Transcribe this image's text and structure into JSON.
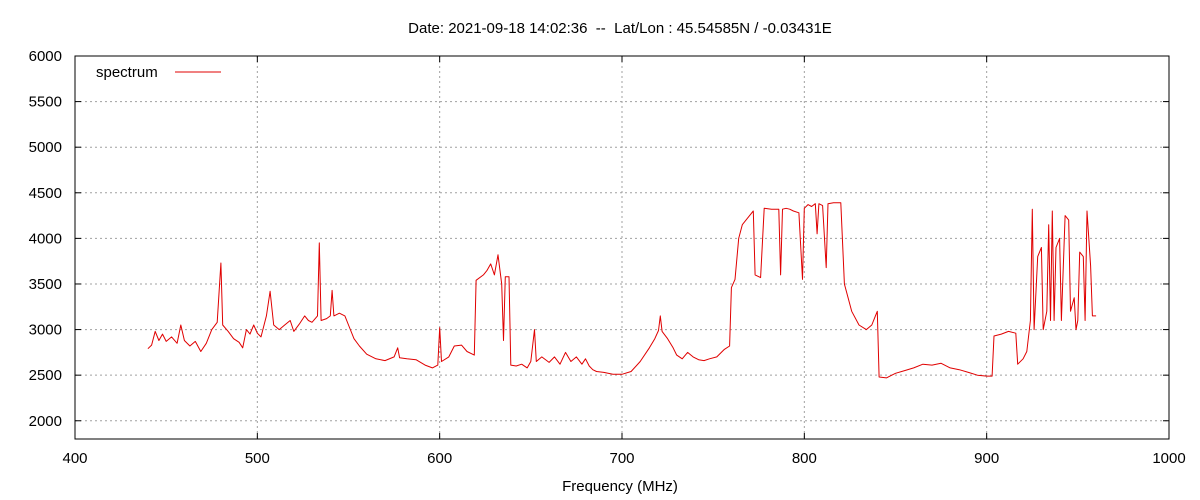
{
  "chart_data": {
    "type": "line",
    "title": "Date: 2021-09-18 14:02:36  --  Lat/Lon : 45.54585N / -0.03431E",
    "xlabel": "Frequency (MHz)",
    "ylabel": "",
    "xlim": [
      400,
      1000
    ],
    "ylim": [
      1800,
      6000
    ],
    "xticks": [
      400,
      500,
      600,
      700,
      800,
      900,
      1000
    ],
    "yticks": [
      2000,
      2500,
      3000,
      3500,
      4000,
      4500,
      5000,
      5500,
      6000
    ],
    "grid": true,
    "legend_position": "top-left",
    "series": [
      {
        "name": "spectrum",
        "color": "#e00000",
        "points": [
          [
            440,
            2790
          ],
          [
            442,
            2830
          ],
          [
            444,
            2980
          ],
          [
            446,
            2880
          ],
          [
            448,
            2950
          ],
          [
            450,
            2870
          ],
          [
            453,
            2920
          ],
          [
            456,
            2850
          ],
          [
            458,
            3050
          ],
          [
            460,
            2880
          ],
          [
            463,
            2820
          ],
          [
            466,
            2870
          ],
          [
            469,
            2760
          ],
          [
            472,
            2850
          ],
          [
            475,
            3000
          ],
          [
            478,
            3080
          ],
          [
            480,
            3730
          ],
          [
            481,
            3050
          ],
          [
            484,
            2980
          ],
          [
            487,
            2900
          ],
          [
            490,
            2860
          ],
          [
            492,
            2800
          ],
          [
            494,
            3000
          ],
          [
            496,
            2950
          ],
          [
            498,
            3050
          ],
          [
            500,
            2960
          ],
          [
            502,
            2920
          ],
          [
            505,
            3150
          ],
          [
            507,
            3420
          ],
          [
            509,
            3050
          ],
          [
            512,
            3000
          ],
          [
            515,
            3050
          ],
          [
            518,
            3100
          ],
          [
            520,
            2980
          ],
          [
            523,
            3060
          ],
          [
            526,
            3150
          ],
          [
            528,
            3100
          ],
          [
            530,
            3080
          ],
          [
            533,
            3150
          ],
          [
            534,
            3950
          ],
          [
            535,
            3100
          ],
          [
            538,
            3120
          ],
          [
            540,
            3150
          ],
          [
            541,
            3430
          ],
          [
            542,
            3150
          ],
          [
            545,
            3180
          ],
          [
            548,
            3150
          ],
          [
            550,
            3050
          ],
          [
            553,
            2900
          ],
          [
            556,
            2820
          ],
          [
            560,
            2730
          ],
          [
            565,
            2680
          ],
          [
            570,
            2660
          ],
          [
            575,
            2700
          ],
          [
            577,
            2800
          ],
          [
            578,
            2690
          ],
          [
            582,
            2680
          ],
          [
            587,
            2670
          ],
          [
            592,
            2610
          ],
          [
            596,
            2580
          ],
          [
            599,
            2610
          ],
          [
            600,
            3020
          ],
          [
            601,
            2650
          ],
          [
            605,
            2700
          ],
          [
            608,
            2820
          ],
          [
            612,
            2830
          ],
          [
            615,
            2760
          ],
          [
            619,
            2720
          ],
          [
            620,
            3540
          ],
          [
            624,
            3600
          ],
          [
            626,
            3650
          ],
          [
            628,
            3720
          ],
          [
            630,
            3600
          ],
          [
            632,
            3820
          ],
          [
            634,
            3500
          ],
          [
            635,
            2880
          ],
          [
            636,
            3580
          ],
          [
            638,
            3580
          ],
          [
            639,
            2610
          ],
          [
            642,
            2600
          ],
          [
            645,
            2620
          ],
          [
            648,
            2580
          ],
          [
            650,
            2650
          ],
          [
            652,
            3000
          ],
          [
            653,
            2650
          ],
          [
            656,
            2700
          ],
          [
            660,
            2640
          ],
          [
            663,
            2700
          ],
          [
            666,
            2620
          ],
          [
            669,
            2750
          ],
          [
            672,
            2650
          ],
          [
            675,
            2700
          ],
          [
            678,
            2620
          ],
          [
            680,
            2680
          ],
          [
            682,
            2600
          ],
          [
            684,
            2560
          ],
          [
            686,
            2540
          ],
          [
            690,
            2530
          ],
          [
            695,
            2510
          ],
          [
            700,
            2510
          ],
          [
            705,
            2540
          ],
          [
            710,
            2650
          ],
          [
            715,
            2800
          ],
          [
            718,
            2900
          ],
          [
            720,
            2990
          ],
          [
            721,
            3150
          ],
          [
            722,
            2980
          ],
          [
            725,
            2900
          ],
          [
            728,
            2800
          ],
          [
            730,
            2720
          ],
          [
            733,
            2680
          ],
          [
            736,
            2750
          ],
          [
            739,
            2700
          ],
          [
            742,
            2670
          ],
          [
            745,
            2660
          ],
          [
            748,
            2680
          ],
          [
            752,
            2700
          ],
          [
            756,
            2780
          ],
          [
            759,
            2820
          ],
          [
            760,
            3460
          ],
          [
            762,
            3550
          ],
          [
            764,
            4000
          ],
          [
            766,
            4150
          ],
          [
            768,
            4200
          ],
          [
            770,
            4250
          ],
          [
            772,
            4300
          ],
          [
            773,
            3600
          ],
          [
            776,
            3570
          ],
          [
            778,
            4330
          ],
          [
            782,
            4320
          ],
          [
            786,
            4320
          ],
          [
            787,
            3600
          ],
          [
            788,
            4320
          ],
          [
            790,
            4330
          ],
          [
            792,
            4320
          ],
          [
            794,
            4300
          ],
          [
            797,
            4280
          ],
          [
            799,
            3550
          ],
          [
            800,
            4330
          ],
          [
            802,
            4370
          ],
          [
            804,
            4350
          ],
          [
            806,
            4380
          ],
          [
            807,
            4050
          ],
          [
            808,
            4380
          ],
          [
            810,
            4360
          ],
          [
            812,
            3680
          ],
          [
            813,
            4380
          ],
          [
            816,
            4390
          ],
          [
            820,
            4390
          ],
          [
            822,
            3500
          ],
          [
            826,
            3200
          ],
          [
            830,
            3050
          ],
          [
            834,
            3000
          ],
          [
            837,
            3050
          ],
          [
            839,
            3150
          ],
          [
            840,
            3200
          ],
          [
            841,
            2480
          ],
          [
            845,
            2470
          ],
          [
            850,
            2520
          ],
          [
            855,
            2550
          ],
          [
            860,
            2580
          ],
          [
            865,
            2620
          ],
          [
            870,
            2610
          ],
          [
            875,
            2630
          ],
          [
            880,
            2580
          ],
          [
            885,
            2560
          ],
          [
            890,
            2530
          ],
          [
            895,
            2500
          ],
          [
            900,
            2490
          ],
          [
            903,
            2490
          ],
          [
            904,
            2930
          ],
          [
            908,
            2950
          ],
          [
            912,
            2980
          ],
          [
            916,
            2960
          ],
          [
            917,
            2620
          ],
          [
            920,
            2680
          ],
          [
            922,
            2760
          ],
          [
            924,
            3100
          ],
          [
            925,
            4320
          ],
          [
            926,
            3000
          ],
          [
            928,
            3800
          ],
          [
            930,
            3900
          ],
          [
            931,
            3000
          ],
          [
            933,
            3200
          ],
          [
            934,
            4150
          ],
          [
            935,
            3100
          ],
          [
            936,
            4300
          ],
          [
            937,
            3100
          ],
          [
            938,
            3900
          ],
          [
            940,
            4000
          ],
          [
            941,
            3100
          ],
          [
            943,
            4250
          ],
          [
            945,
            4200
          ],
          [
            946,
            3200
          ],
          [
            948,
            3350
          ],
          [
            949,
            3000
          ],
          [
            950,
            3100
          ],
          [
            951,
            3850
          ],
          [
            953,
            3800
          ],
          [
            954,
            3100
          ],
          [
            955,
            4300
          ],
          [
            957,
            3700
          ],
          [
            958,
            3150
          ],
          [
            960,
            3150
          ]
        ]
      }
    ]
  }
}
